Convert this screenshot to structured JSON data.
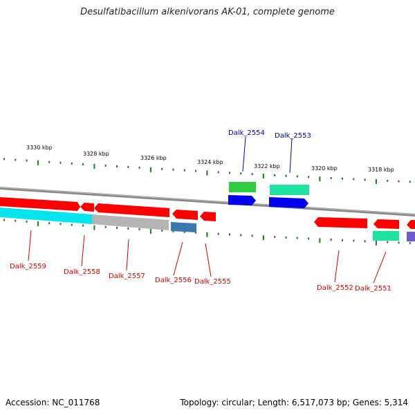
{
  "title": "Desulfatibacillum alkenivorans AK-01, complete genome",
  "footer": {
    "accession": "Accession: NC_011768",
    "summary": "Topology: circular; Length: 6,517,073 bp; Genes: 5,314"
  },
  "colors": {
    "backbone": "#888888",
    "tick": "#1a7a1a",
    "label_forward": "#000099",
    "label_reverse": "#cc0000"
  },
  "kbp_labels": [
    "3330 kbp",
    "3328 kbp",
    "3326 kbp",
    "3324 kbp",
    "3322 kbp",
    "3320 kbp",
    "3318 kbp"
  ],
  "genes": [
    {
      "label": "Dalk_2559",
      "strand": "reverse",
      "color": "#ff0000"
    },
    {
      "label": "Dalk_2558",
      "strand": "reverse",
      "color": "#ff0000"
    },
    {
      "label": "Dalk_2557",
      "strand": "reverse",
      "color": "#ff0000"
    },
    {
      "label": "Dalk_2556",
      "strand": "reverse",
      "color": "#ff0000"
    },
    {
      "label": "Dalk_2555",
      "strand": "reverse",
      "color": "#ff0000"
    },
    {
      "label": "Dalk_2554",
      "strand": "forward",
      "color": "#0000ee"
    },
    {
      "label": "Dalk_2553",
      "strand": "forward",
      "color": "#0000ee"
    },
    {
      "label": "Dalk_2552",
      "strand": "reverse",
      "color": "#ff0000"
    },
    {
      "label": "Dalk_2551",
      "strand": "reverse",
      "color": "#ff0000"
    }
  ],
  "features": [
    {
      "kind": "cyan-feature",
      "color": "#00e5ee"
    },
    {
      "kind": "gray-feature",
      "color": "#b0b0b0"
    },
    {
      "kind": "steelblue-feature",
      "color": "#3a78b0"
    },
    {
      "kind": "green-feature",
      "color": "#2ecc40"
    },
    {
      "kind": "aquamarine-feature",
      "color": "#1ee3a0"
    },
    {
      "kind": "aquamarine-feature-2",
      "color": "#1ee3a0"
    },
    {
      "kind": "purple-feature",
      "color": "#6a5acd"
    }
  ]
}
